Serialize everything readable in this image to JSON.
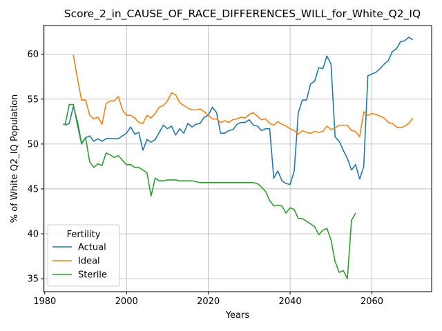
{
  "chart_data": {
    "type": "line",
    "title": "Score_2_in_CAUSE_OF_RACE_DIFFERENCES_WILL_for_White_Q2_IQ",
    "xlabel": "Years",
    "ylabel": "% of White Q2_IQ Population",
    "xlim": [
      1979.7,
      2074.6
    ],
    "ylim": [
      33.55,
      63.2
    ],
    "xticks": [
      1980,
      2000,
      2020,
      2040,
      2060
    ],
    "yticks": [
      35,
      40,
      45,
      50,
      55,
      60
    ],
    "grid": true,
    "legend": {
      "title": "Fertility",
      "placement": "lower-left"
    },
    "series": [
      {
        "name": "Actual",
        "color": "#1f77b4",
        "points": [
          [
            1985,
            52.1
          ],
          [
            1986,
            52.3
          ],
          [
            1987,
            54.2
          ],
          [
            1988,
            52.5
          ],
          [
            1989,
            50.1
          ],
          [
            1990,
            50.7
          ],
          [
            1991,
            50.9
          ],
          [
            1992,
            50.3
          ],
          [
            1993,
            50.6
          ],
          [
            1994,
            50.3
          ],
          [
            1995,
            50.6
          ],
          [
            1996,
            50.6
          ],
          [
            1997,
            50.6
          ],
          [
            1998,
            50.6
          ],
          [
            1999,
            50.9
          ],
          [
            2000,
            51.2
          ],
          [
            2001,
            51.9
          ],
          [
            2002,
            51.1
          ],
          [
            2003,
            51.3
          ],
          [
            2004,
            49.3
          ],
          [
            2005,
            50.5
          ],
          [
            2006,
            50.2
          ],
          [
            2007,
            50.5
          ],
          [
            2008,
            51.3
          ],
          [
            2009,
            52.1
          ],
          [
            2010,
            51.7
          ],
          [
            2011,
            52.0
          ],
          [
            2012,
            51.0
          ],
          [
            2013,
            51.7
          ],
          [
            2014,
            51.2
          ],
          [
            2015,
            52.3
          ],
          [
            2016,
            51.9
          ],
          [
            2017,
            52.2
          ],
          [
            2018,
            52.3
          ],
          [
            2019,
            53.0
          ],
          [
            2020,
            53.2
          ],
          [
            2021,
            54.1
          ],
          [
            2022,
            53.5
          ],
          [
            2023,
            51.2
          ],
          [
            2024,
            51.2
          ],
          [
            2025,
            51.5
          ],
          [
            2026,
            51.6
          ],
          [
            2027,
            52.2
          ],
          [
            2028,
            52.4
          ],
          [
            2029,
            52.4
          ],
          [
            2030,
            52.7
          ],
          [
            2031,
            52.1
          ],
          [
            2032,
            52.0
          ],
          [
            2033,
            51.5
          ],
          [
            2034,
            51.7
          ],
          [
            2035,
            51.7
          ],
          [
            2036,
            46.2
          ],
          [
            2037,
            47.0
          ],
          [
            2038,
            45.9
          ],
          [
            2039,
            45.6
          ],
          [
            2040,
            45.5
          ],
          [
            2041,
            47.0
          ],
          [
            2042,
            53.5
          ],
          [
            2043,
            54.9
          ],
          [
            2044,
            54.9
          ],
          [
            2045,
            56.7
          ],
          [
            2046,
            57.0
          ],
          [
            2047,
            58.5
          ],
          [
            2048,
            58.4
          ],
          [
            2049,
            59.8
          ],
          [
            2050,
            58.9
          ],
          [
            2051,
            50.8
          ],
          [
            2052,
            50.3
          ],
          [
            2053,
            49.3
          ],
          [
            2054,
            48.4
          ],
          [
            2055,
            47.1
          ],
          [
            2056,
            47.7
          ],
          [
            2057,
            46.1
          ],
          [
            2058,
            47.5
          ],
          [
            2059,
            57.6
          ],
          [
            2060,
            57.8
          ],
          [
            2061,
            58.0
          ],
          [
            2062,
            58.4
          ],
          [
            2063,
            58.9
          ],
          [
            2064,
            59.3
          ],
          [
            2065,
            60.3
          ],
          [
            2066,
            60.6
          ],
          [
            2067,
            61.4
          ],
          [
            2068,
            61.5
          ],
          [
            2069,
            61.9
          ],
          [
            2070,
            61.6
          ]
        ]
      },
      {
        "name": "Ideal",
        "color": "#ff7f0e",
        "points": [
          [
            1987,
            59.9
          ],
          [
            1988,
            57.3
          ],
          [
            1989,
            54.9
          ],
          [
            1990,
            54.9
          ],
          [
            1991,
            53.2
          ],
          [
            1992,
            52.8
          ],
          [
            1993,
            53.0
          ],
          [
            1994,
            52.2
          ],
          [
            1995,
            54.5
          ],
          [
            1996,
            54.8
          ],
          [
            1997,
            54.8
          ],
          [
            1998,
            55.3
          ],
          [
            1999,
            53.8
          ],
          [
            2000,
            53.2
          ],
          [
            2001,
            53.2
          ],
          [
            2002,
            52.9
          ],
          [
            2003,
            52.4
          ],
          [
            2004,
            52.3
          ],
          [
            2005,
            53.2
          ],
          [
            2006,
            52.9
          ],
          [
            2007,
            53.4
          ],
          [
            2008,
            54.1
          ],
          [
            2009,
            54.3
          ],
          [
            2010,
            54.8
          ],
          [
            2011,
            55.7
          ],
          [
            2012,
            55.5
          ],
          [
            2013,
            54.6
          ],
          [
            2014,
            54.3
          ],
          [
            2015,
            54.0
          ],
          [
            2016,
            53.8
          ],
          [
            2017,
            53.8
          ],
          [
            2018,
            53.9
          ],
          [
            2019,
            53.6
          ],
          [
            2020,
            53.2
          ],
          [
            2021,
            52.8
          ],
          [
            2022,
            52.8
          ],
          [
            2023,
            52.4
          ],
          [
            2024,
            52.6
          ],
          [
            2025,
            52.4
          ],
          [
            2026,
            52.7
          ],
          [
            2027,
            52.8
          ],
          [
            2028,
            53.0
          ],
          [
            2029,
            52.9
          ],
          [
            2030,
            53.3
          ],
          [
            2031,
            53.5
          ],
          [
            2032,
            53.1
          ],
          [
            2033,
            52.7
          ],
          [
            2034,
            52.8
          ],
          [
            2035,
            52.3
          ],
          [
            2036,
            52.1
          ],
          [
            2037,
            52.5
          ],
          [
            2038,
            52.2
          ],
          [
            2039,
            52.0
          ],
          [
            2040,
            51.7
          ],
          [
            2041,
            51.5
          ],
          [
            2042,
            51.1
          ],
          [
            2043,
            51.5
          ],
          [
            2044,
            51.3
          ],
          [
            2045,
            51.2
          ],
          [
            2046,
            51.4
          ],
          [
            2047,
            51.3
          ],
          [
            2048,
            51.4
          ],
          [
            2049,
            52.0
          ],
          [
            2050,
            51.6
          ],
          [
            2051,
            51.8
          ],
          [
            2052,
            52.1
          ],
          [
            2053,
            52.1
          ],
          [
            2054,
            52.1
          ],
          [
            2055,
            51.5
          ],
          [
            2056,
            51.4
          ],
          [
            2057,
            50.8
          ],
          [
            2058,
            53.6
          ],
          [
            2059,
            53.2
          ],
          [
            2060,
            53.4
          ],
          [
            2061,
            53.3
          ],
          [
            2062,
            53.1
          ],
          [
            2063,
            52.9
          ],
          [
            2064,
            52.4
          ],
          [
            2065,
            52.3
          ],
          [
            2066,
            51.9
          ],
          [
            2067,
            51.8
          ],
          [
            2068,
            52.0
          ],
          [
            2069,
            52.3
          ],
          [
            2070,
            52.9
          ]
        ]
      },
      {
        "name": "Sterile",
        "color": "#2ca02c",
        "points": [
          [
            1984.5,
            52.2
          ],
          [
            1985,
            52.2
          ],
          [
            1986,
            54.4
          ],
          [
            1987,
            54.4
          ],
          [
            1988,
            52.1
          ],
          [
            1989,
            50.0
          ],
          [
            1990,
            50.7
          ],
          [
            1991,
            48.0
          ],
          [
            1992,
            47.4
          ],
          [
            1993,
            47.8
          ],
          [
            1994,
            47.6
          ],
          [
            1995,
            49.0
          ],
          [
            1996,
            48.8
          ],
          [
            1997,
            48.5
          ],
          [
            1998,
            48.7
          ],
          [
            1999,
            48.2
          ],
          [
            2000,
            47.7
          ],
          [
            2001,
            47.7
          ],
          [
            2002,
            47.4
          ],
          [
            2003,
            47.4
          ],
          [
            2004,
            47.1
          ],
          [
            2005,
            46.8
          ],
          [
            2006,
            44.2
          ],
          [
            2007,
            46.2
          ],
          [
            2008,
            45.9
          ],
          [
            2009,
            45.9
          ],
          [
            2010,
            46.0
          ],
          [
            2011,
            46.0
          ],
          [
            2012,
            46.0
          ],
          [
            2013,
            45.9
          ],
          [
            2014,
            45.9
          ],
          [
            2015,
            45.9
          ],
          [
            2016,
            45.9
          ],
          [
            2017,
            45.8
          ],
          [
            2018,
            45.7
          ],
          [
            2019,
            45.7
          ],
          [
            2020,
            45.7
          ],
          [
            2021,
            45.7
          ],
          [
            2022,
            45.7
          ],
          [
            2023,
            45.7
          ],
          [
            2024,
            45.7
          ],
          [
            2025,
            45.7
          ],
          [
            2026,
            45.7
          ],
          [
            2027,
            45.7
          ],
          [
            2028,
            45.7
          ],
          [
            2029,
            45.7
          ],
          [
            2030,
            45.7
          ],
          [
            2031,
            45.7
          ],
          [
            2032,
            45.6
          ],
          [
            2033,
            45.2
          ],
          [
            2034,
            44.7
          ],
          [
            2035,
            43.7
          ],
          [
            2036,
            43.1
          ],
          [
            2037,
            43.2
          ],
          [
            2038,
            43.1
          ],
          [
            2039,
            42.3
          ],
          [
            2040,
            42.9
          ],
          [
            2041,
            42.7
          ],
          [
            2042,
            41.7
          ],
          [
            2043,
            41.7
          ],
          [
            2044,
            41.4
          ],
          [
            2045,
            41.1
          ],
          [
            2046,
            40.8
          ],
          [
            2047,
            39.9
          ],
          [
            2048,
            40.4
          ],
          [
            2049,
            40.6
          ],
          [
            2050,
            39.3
          ],
          [
            2051,
            36.9
          ],
          [
            2052,
            35.7
          ],
          [
            2053,
            35.9
          ],
          [
            2054,
            35.0
          ],
          [
            2055,
            41.5
          ],
          [
            2056,
            42.3
          ]
        ]
      }
    ]
  }
}
